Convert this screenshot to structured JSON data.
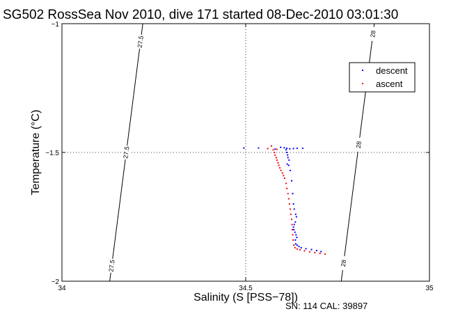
{
  "chart_data": {
    "type": "scatter",
    "title": "SG502 RossSea Nov 2010, dive 171 started 08-Dec-2010 03:01:30",
    "xlabel": "Salinity (S [PSS−78])",
    "ylabel": "Temperature (°C)",
    "xlim": [
      34,
      35
    ],
    "ylim": [
      -2,
      -1
    ],
    "xticks": [
      34,
      34.5,
      35
    ],
    "yticks": [
      -2,
      -1.5,
      -1
    ],
    "xtick_labels": [
      "34",
      "34.5",
      "35"
    ],
    "ytick_labels": [
      "−2",
      "−1.5",
      "−1"
    ],
    "grid": "dotted lines at x=34.5 and y=-1.5",
    "legend": {
      "placement": "top-right",
      "entries": [
        "descent",
        "ascent"
      ]
    },
    "footer": "SN: 114  CAL: 39897",
    "isopycnals": [
      {
        "label": "27.5",
        "points": [
          [
            34.13,
            -2.0
          ],
          [
            34.22,
            -1.0
          ]
        ],
        "label_y": [
          -1.94,
          -1.5,
          -1.07
        ]
      },
      {
        "label": "28",
        "points": [
          [
            34.76,
            -2.0
          ],
          [
            34.85,
            -1.0
          ]
        ],
        "label_y": [
          -1.93,
          -1.47,
          -1.04
        ]
      }
    ],
    "series": [
      {
        "name": "descent",
        "color": "#0000ff",
        "points": [
          [
            34.495,
            -1.483
          ],
          [
            34.535,
            -1.483
          ],
          [
            34.58,
            -1.487
          ],
          [
            34.595,
            -1.48
          ],
          [
            34.605,
            -1.482
          ],
          [
            34.612,
            -1.484
          ],
          [
            34.62,
            -1.486
          ],
          [
            34.63,
            -1.485
          ],
          [
            34.64,
            -1.484
          ],
          [
            34.655,
            -1.484
          ],
          [
            34.61,
            -1.49
          ],
          [
            34.612,
            -1.5
          ],
          [
            34.614,
            -1.51
          ],
          [
            34.615,
            -1.52
          ],
          [
            34.618,
            -1.53
          ],
          [
            34.613,
            -1.545
          ],
          [
            34.617,
            -1.55
          ],
          [
            34.621,
            -1.57
          ],
          [
            34.625,
            -1.61
          ],
          [
            34.628,
            -1.66
          ],
          [
            34.63,
            -1.7
          ],
          [
            34.632,
            -1.72
          ],
          [
            34.636,
            -1.74
          ],
          [
            34.638,
            -1.75
          ],
          [
            34.635,
            -1.77
          ],
          [
            34.632,
            -1.78
          ],
          [
            34.63,
            -1.79
          ],
          [
            34.631,
            -1.8
          ],
          [
            34.634,
            -1.81
          ],
          [
            34.637,
            -1.82
          ],
          [
            34.639,
            -1.83
          ],
          [
            34.635,
            -1.84
          ],
          [
            34.636,
            -1.855
          ],
          [
            34.64,
            -1.86
          ],
          [
            34.645,
            -1.865
          ],
          [
            34.651,
            -1.87
          ],
          [
            34.664,
            -1.874
          ],
          [
            34.679,
            -1.877
          ],
          [
            34.693,
            -1.881
          ],
          [
            34.705,
            -1.885
          ]
        ]
      },
      {
        "name": "ascent",
        "color": "#ff0000",
        "points": [
          [
            34.56,
            -1.485
          ],
          [
            34.585,
            -1.488
          ],
          [
            34.57,
            -1.475
          ],
          [
            34.575,
            -1.49
          ],
          [
            34.578,
            -1.5
          ],
          [
            34.58,
            -1.51
          ],
          [
            34.583,
            -1.52
          ],
          [
            34.585,
            -1.53
          ],
          [
            34.588,
            -1.54
          ],
          [
            34.59,
            -1.55
          ],
          [
            34.593,
            -1.56
          ],
          [
            34.596,
            -1.57
          ],
          [
            34.6,
            -1.58
          ],
          [
            34.603,
            -1.59
          ],
          [
            34.606,
            -1.6
          ],
          [
            34.61,
            -1.62
          ],
          [
            34.612,
            -1.64
          ],
          [
            34.615,
            -1.66
          ],
          [
            34.617,
            -1.68
          ],
          [
            34.619,
            -1.7
          ],
          [
            34.621,
            -1.72
          ],
          [
            34.623,
            -1.74
          ],
          [
            34.625,
            -1.76
          ],
          [
            34.626,
            -1.78
          ],
          [
            34.627,
            -1.8
          ],
          [
            34.628,
            -1.82
          ],
          [
            34.629,
            -1.84
          ],
          [
            34.631,
            -1.86
          ],
          [
            34.634,
            -1.87
          ],
          [
            34.64,
            -1.875
          ],
          [
            34.648,
            -1.878
          ],
          [
            34.66,
            -1.882
          ],
          [
            34.674,
            -1.886
          ],
          [
            34.688,
            -1.889
          ],
          [
            34.702,
            -1.892
          ],
          [
            34.716,
            -1.895
          ]
        ]
      }
    ]
  }
}
